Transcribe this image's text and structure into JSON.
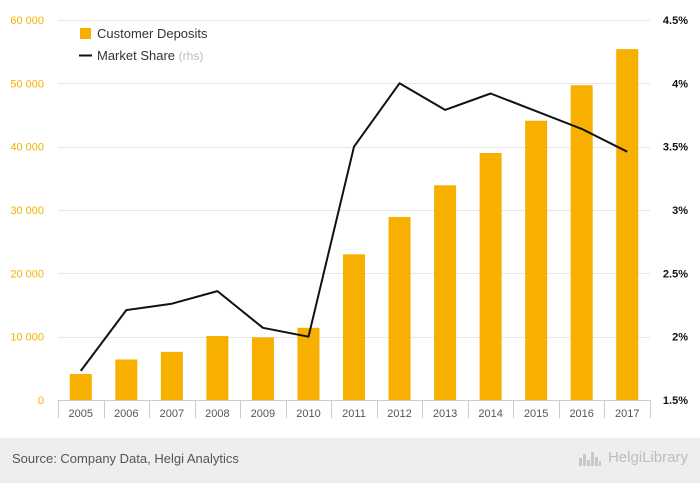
{
  "chart_data": {
    "type": "bar+line",
    "categories": [
      "2005",
      "2006",
      "2007",
      "2008",
      "2009",
      "2010",
      "2011",
      "2012",
      "2013",
      "2014",
      "2015",
      "2016",
      "2017"
    ],
    "series": [
      {
        "name": "Customer Deposits",
        "type": "bar",
        "axis": "left",
        "values": [
          4100,
          6400,
          7600,
          10100,
          9900,
          11400,
          23000,
          28900,
          33900,
          39000,
          44100,
          49700,
          55400
        ]
      },
      {
        "name": "Market Share",
        "name_suffix": "(rhs)",
        "type": "line",
        "axis": "right",
        "values": [
          1.73,
          2.21,
          2.26,
          2.36,
          2.07,
          2.0,
          3.5,
          4.0,
          3.79,
          3.92,
          3.78,
          3.64,
          3.46
        ]
      }
    ],
    "y_left": {
      "ylim": [
        0,
        60000
      ],
      "ticks": [
        0,
        10000,
        20000,
        30000,
        40000,
        50000,
        60000
      ],
      "tick_labels": [
        "0",
        "10 000",
        "20 000",
        "30 000",
        "40 000",
        "50 000",
        "60 000"
      ]
    },
    "y_right": {
      "ylim": [
        1.5,
        4.5
      ],
      "ticks": [
        1.5,
        2,
        2.5,
        3,
        3.5,
        4,
        4.5
      ],
      "tick_labels": [
        "1.5%",
        "2%",
        "2.5%",
        "3%",
        "3.5%",
        "4%",
        "4.5%"
      ]
    },
    "grid": true,
    "legend_position": "top-left",
    "colors": {
      "bar": "#f7b000",
      "line": "#111111",
      "left_axis_text": "#f7b000",
      "right_axis_text": "#111111"
    }
  },
  "footer": {
    "source": "Source: Company Data, Helgi Analytics",
    "brand": "HelgiLibrary",
    "brand_icon": "city-skyline-icon"
  }
}
